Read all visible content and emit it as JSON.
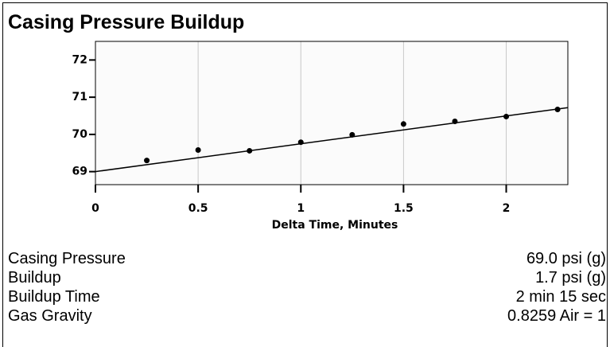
{
  "title": "Casing Pressure Buildup",
  "chart_data": {
    "type": "scatter",
    "xlabel": "Delta Time, Minutes",
    "x": [
      0.25,
      0.5,
      0.75,
      1.0,
      1.25,
      1.5,
      1.75,
      2.0,
      2.25
    ],
    "series": [
      {
        "color": "#000000",
        "values": [
          69.3,
          69.58,
          69.56,
          69.79,
          69.99,
          70.28,
          70.35,
          70.48,
          70.67
        ]
      },
      {
        "color": "#000000",
        "line": true,
        "x": [
          0,
          2.3
        ],
        "values": [
          69.0,
          70.72
        ]
      }
    ],
    "xlim": [
      0,
      2.3
    ],
    "xticks": [
      0,
      0.5,
      1,
      1.5,
      2
    ],
    "ylim": [
      68.65,
      72.5
    ],
    "yticks": [
      69,
      70,
      71,
      72
    ],
    "grid": true
  },
  "table": {
    "rows": [
      [
        "Casing Pressure",
        "69.0 psi (g)"
      ],
      [
        "Buildup",
        "1.7 psi (g)"
      ],
      [
        "Buildup Time",
        "2 min 15 sec"
      ],
      [
        "Gas Gravity",
        "0.8259 Air = 1"
      ]
    ]
  }
}
